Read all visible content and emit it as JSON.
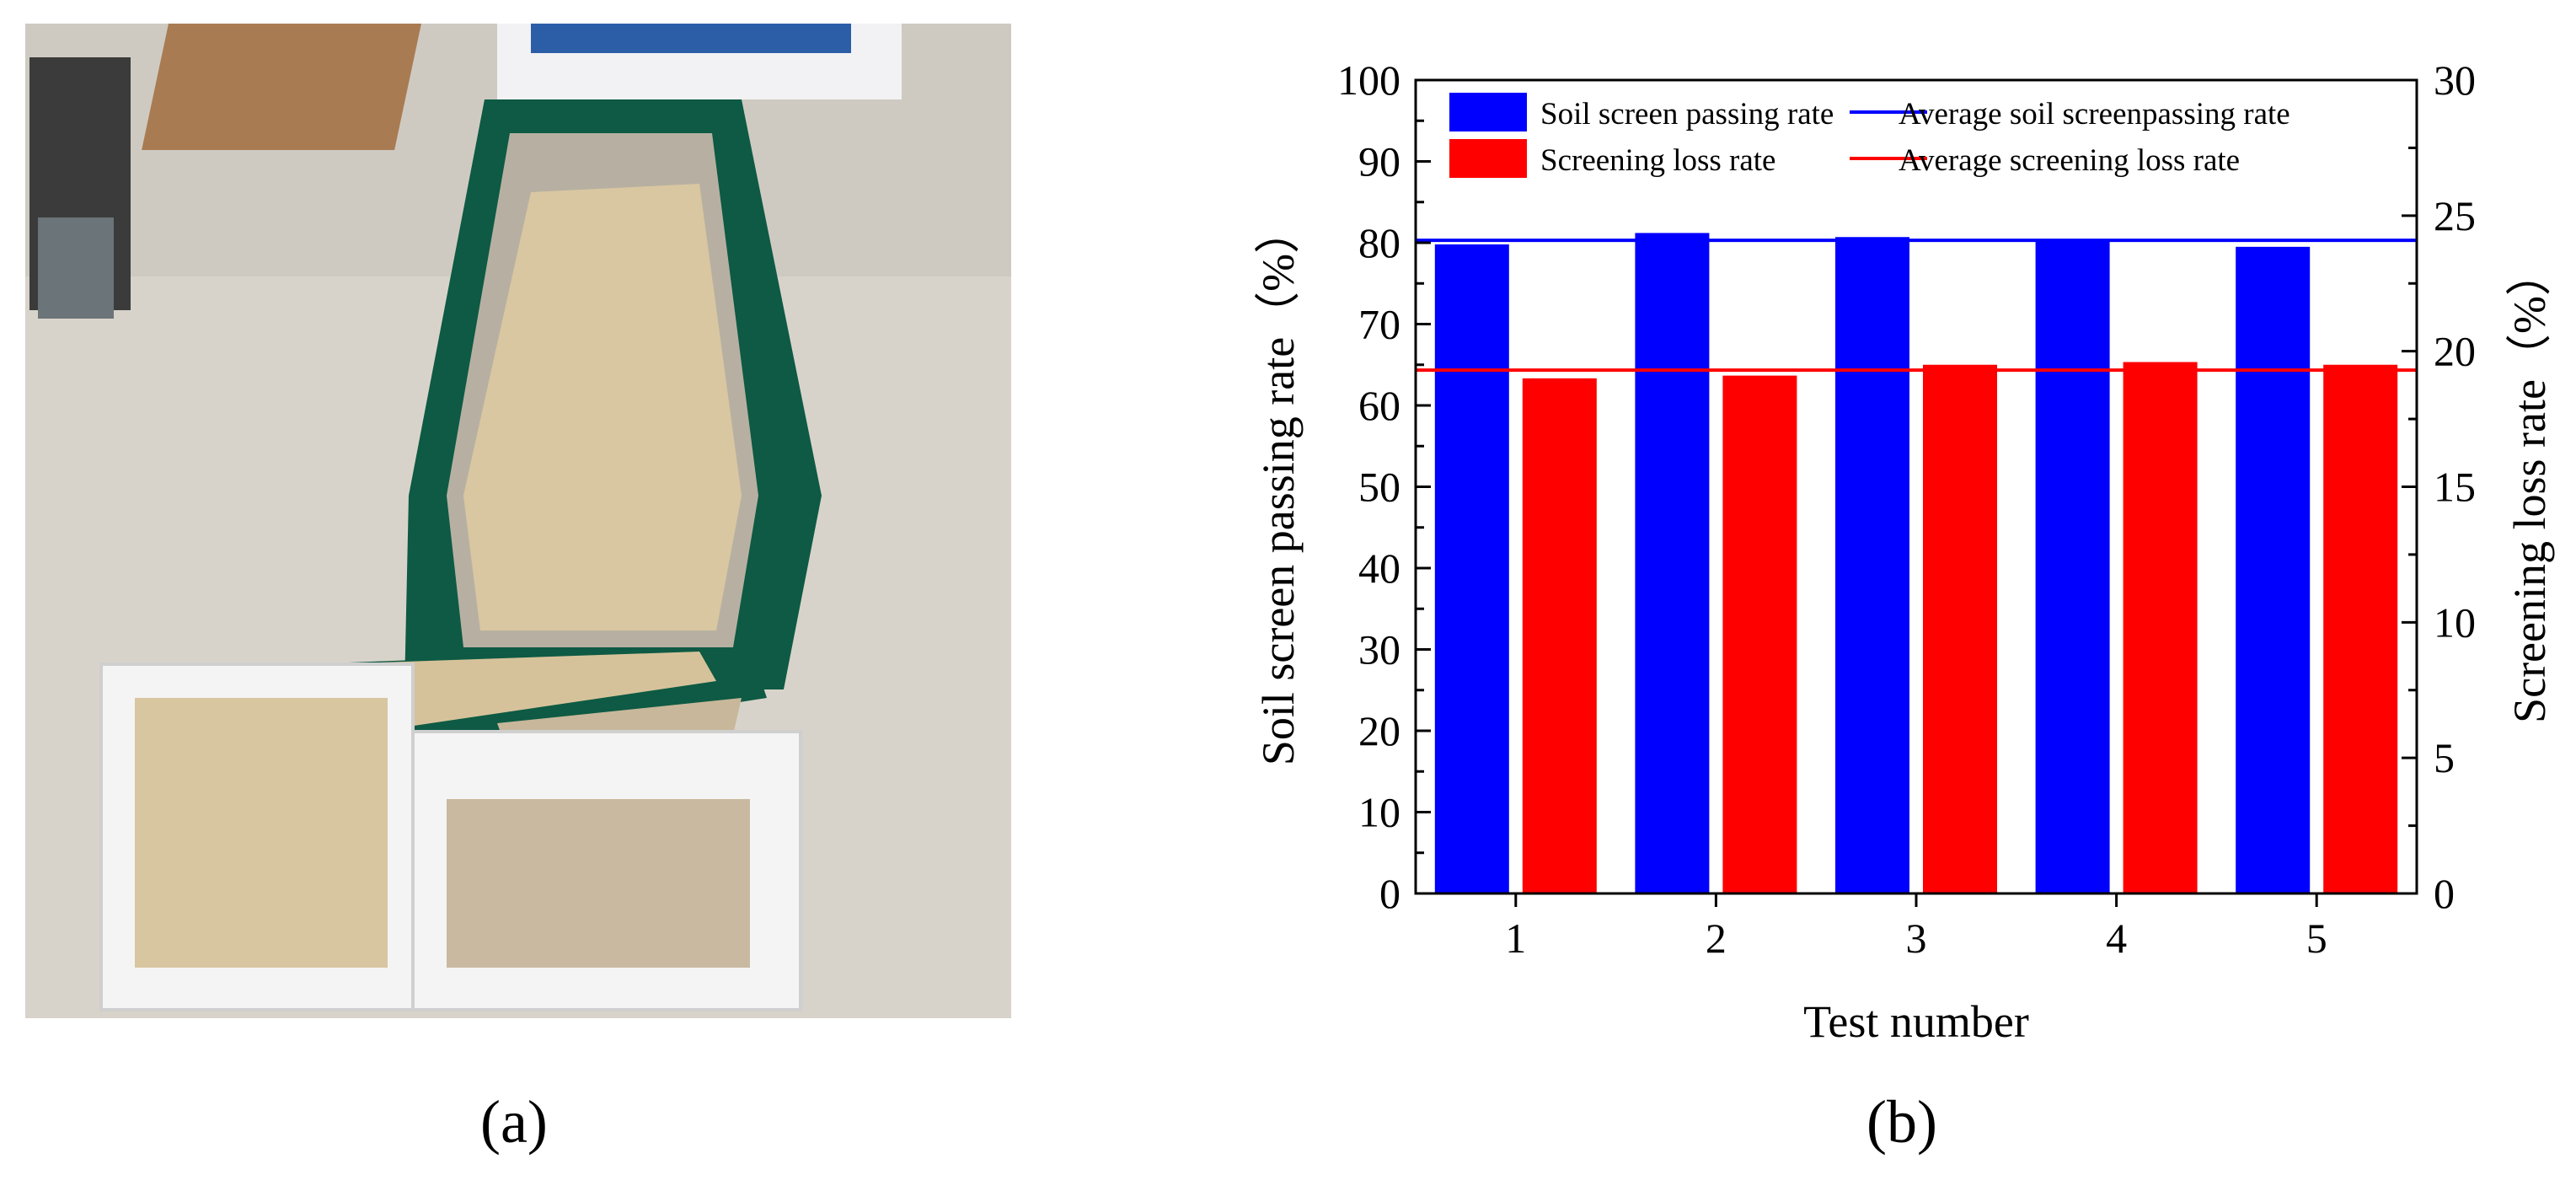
{
  "panels": {
    "a": "(a)",
    "b": "(b)"
  },
  "colors": {
    "blue": "#0000ff",
    "red": "#ff0000",
    "frame": "#0e5a44",
    "floor": "#d9d4cc"
  },
  "chart_data": {
    "type": "bar",
    "categories": [
      "1",
      "2",
      "3",
      "4",
      "5"
    ],
    "series": [
      {
        "name": "Soil screen passing rate",
        "axis": "left",
        "color": "#0000ff",
        "values": [
          79.8,
          81.2,
          80.7,
          80.3,
          79.5
        ]
      },
      {
        "name": "Screening loss rate",
        "axis": "right",
        "color": "#ff0000",
        "values": [
          19.0,
          19.1,
          19.5,
          19.6,
          19.5
        ]
      }
    ],
    "reference_lines": [
      {
        "name": "Average soil screenpassing rate",
        "axis": "left",
        "value": 80.3,
        "color": "#0000ff"
      },
      {
        "name": "Average screening loss rate",
        "axis": "right",
        "value": 19.3,
        "color": "#ff0000"
      }
    ],
    "xlabel": "Test number",
    "ylabel": "Soil screen passing rate（%）",
    "y2label": "Screening loss rate（%）",
    "ylim": [
      0,
      100
    ],
    "y2lim": [
      0,
      30
    ],
    "yticks": [
      "0",
      "10",
      "20",
      "30",
      "40",
      "50",
      "60",
      "70",
      "80",
      "90",
      "100"
    ],
    "y2ticks": [
      "0",
      "5",
      "10",
      "15",
      "20",
      "25",
      "30"
    ],
    "legend_position": "top",
    "grid": false
  }
}
